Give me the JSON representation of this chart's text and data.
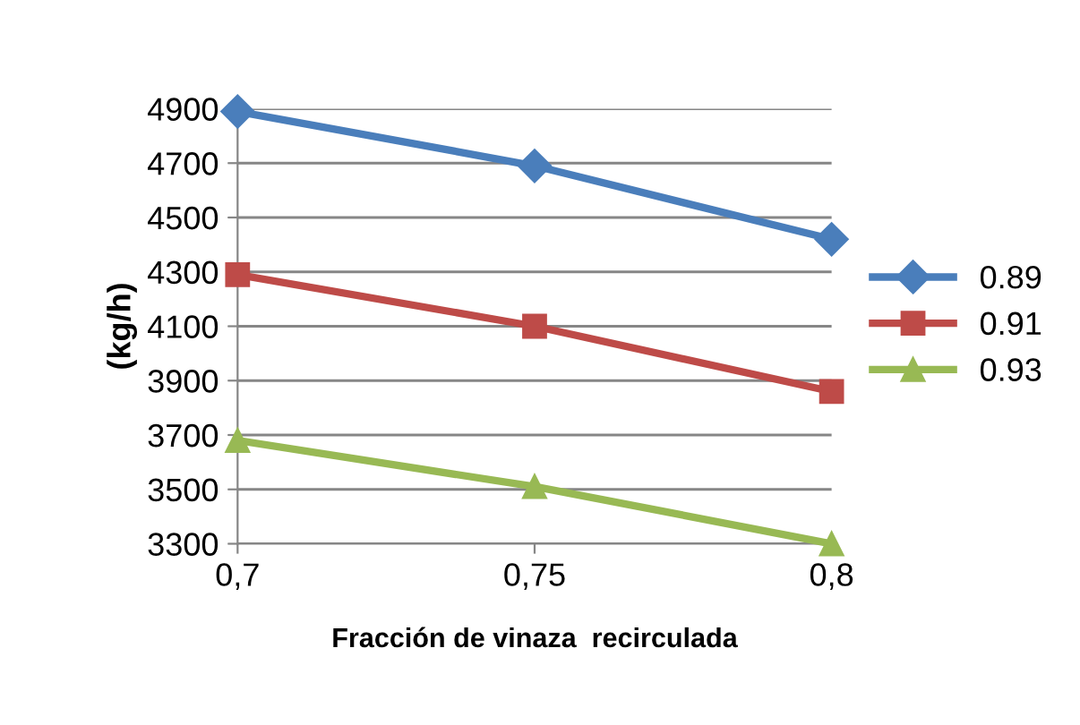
{
  "chart_data": {
    "type": "line",
    "xlabel": "Fracción de vinaza  recirculada",
    "ylabel": "(kg/h)",
    "categories": [
      "0,7",
      "0,75",
      "0,8"
    ],
    "series": [
      {
        "name": "0.89",
        "color": "#4a7ebb",
        "marker": "diamond",
        "values": [
          4890,
          4690,
          4420
        ]
      },
      {
        "name": "0.91",
        "color": "#be4b48",
        "marker": "square",
        "values": [
          4290,
          4100,
          3860
        ]
      },
      {
        "name": "0.93",
        "color": "#98b954",
        "marker": "triangle",
        "values": [
          3680,
          3510,
          3300
        ]
      }
    ],
    "ylim": [
      3300,
      4900
    ],
    "yticks": [
      3300,
      3500,
      3700,
      3900,
      4100,
      4300,
      4500,
      4700,
      4900
    ],
    "grid": "y",
    "legend": "right",
    "line_style": "solid"
  }
}
